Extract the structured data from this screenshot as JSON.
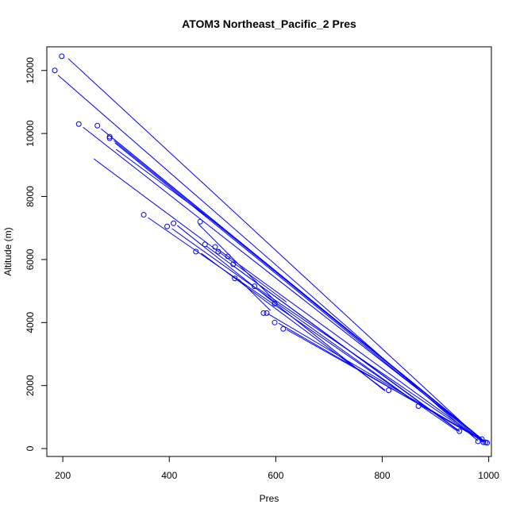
{
  "chart_data": {
    "type": "scatter",
    "title": "ATOM3 Northeast_Pacific_2 Pres",
    "xlabel": "Pres",
    "ylabel": "Altitude (m)",
    "xlim": [
      170,
      1005
    ],
    "ylim": [
      -250,
      12750
    ],
    "xticks": [
      200,
      400,
      600,
      800,
      1000
    ],
    "yticks": [
      0,
      2000,
      4000,
      6000,
      8000,
      10000,
      12000
    ],
    "xtick_labels": [
      "200",
      "400",
      "600",
      "800",
      "1000"
    ],
    "ytick_labels": [
      "0",
      "2000",
      "4000",
      "6000",
      "8000",
      "10000",
      "12000"
    ],
    "grid": false,
    "legend": "none",
    "colors": {
      "series": "#0000ff",
      "axes": "#000000",
      "background": "#ffffff"
    },
    "points": [
      [
        198,
        12450
      ],
      [
        185,
        12000
      ],
      [
        230,
        10300
      ],
      [
        265,
        10250
      ],
      [
        288,
        9900
      ],
      [
        288,
        9850
      ],
      [
        352,
        7420
      ],
      [
        396,
        7050
      ],
      [
        408,
        7150
      ],
      [
        458,
        7200
      ],
      [
        450,
        6250
      ],
      [
        467,
        6480
      ],
      [
        486,
        6400
      ],
      [
        492,
        6250
      ],
      [
        510,
        6100
      ],
      [
        520,
        5850
      ],
      [
        523,
        5400
      ],
      [
        560,
        5150
      ],
      [
        577,
        4300
      ],
      [
        583,
        4300
      ],
      [
        598,
        4600
      ],
      [
        598,
        4000
      ],
      [
        614,
        3800
      ],
      [
        812,
        1850
      ],
      [
        868,
        1350
      ],
      [
        945,
        550
      ],
      [
        980,
        230
      ],
      [
        987,
        300
      ],
      [
        990,
        200
      ],
      [
        994,
        200
      ],
      [
        997,
        180
      ]
    ],
    "segments": [
      [
        [
          210,
          12380
        ],
        [
          990,
          200
        ]
      ],
      [
        [
          191,
          11850
        ],
        [
          980,
          240
        ]
      ],
      [
        [
          238,
          10200
        ],
        [
          995,
          190
        ]
      ],
      [
        [
          272,
          10150
        ],
        [
          994,
          200
        ]
      ],
      [
        [
          296,
          9820
        ],
        [
          987,
          310
        ]
      ],
      [
        [
          296,
          9770
        ],
        [
          990,
          250
        ]
      ],
      [
        [
          298,
          9700
        ],
        [
          990,
          200
        ]
      ],
      [
        [
          258,
          9200
        ],
        [
          620,
          4650
        ]
      ],
      [
        [
          360,
          7330
        ],
        [
          940,
          570
        ]
      ],
      [
        [
          405,
          6980
        ],
        [
          875,
          1330
        ]
      ],
      [
        [
          415,
          7080
        ],
        [
          805,
          1830
        ]
      ],
      [
        [
          460,
          6200
        ],
        [
          805,
          1860
        ]
      ],
      [
        [
          470,
          6420
        ],
        [
          945,
          540
        ]
      ],
      [
        [
          492,
          6320
        ],
        [
          990,
          210
        ]
      ],
      [
        [
          520,
          5800
        ],
        [
          945,
          560
        ]
      ],
      [
        [
          530,
          5380
        ],
        [
          590,
          4380
        ]
      ],
      [
        [
          565,
          5100
        ],
        [
          985,
          260
        ]
      ],
      [
        [
          585,
          4280
        ],
        [
          995,
          190
        ]
      ],
      [
        [
          605,
          3980
        ],
        [
          990,
          230
        ]
      ],
      [
        [
          620,
          3780
        ],
        [
          990,
          260
        ]
      ],
      [
        [
          455,
          7120
        ],
        [
          598,
          4700
        ]
      ],
      [
        [
          300,
          9500
        ],
        [
          500,
          7000
        ]
      ]
    ]
  }
}
